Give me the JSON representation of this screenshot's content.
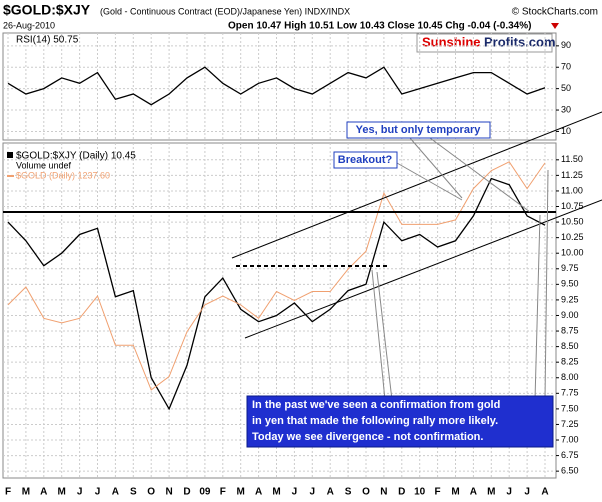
{
  "header": {
    "symbol": "$GOLD:$XJY",
    "description": "(Gold - Continuous Contract (EOD)/Japanese Yen) INDX/INDX",
    "date": "26-Aug-2010",
    "quote": "Open 10.47 High 10.51 Low 10.43 Close 10.45 Chg -0.04 (-0.34%)",
    "source": "© StockCharts.com",
    "logo_left": "Sunshine",
    "logo_right": "Profits.com"
  },
  "chart_data": [
    {
      "type": "line",
      "title": "RSI(14) 50.75",
      "categories": [
        "F",
        "M",
        "A",
        "M",
        "J",
        "J",
        "A",
        "S",
        "O",
        "N",
        "D",
        "09",
        "F",
        "M",
        "A",
        "M",
        "J",
        "J",
        "A",
        "S",
        "O",
        "N",
        "D",
        "10",
        "F",
        "M",
        "A",
        "M",
        "J",
        "J",
        "A"
      ],
      "series": [
        {
          "name": "RSI(14)",
          "color": "#000000",
          "values": [
            55,
            45,
            50,
            60,
            55,
            65,
            40,
            45,
            35,
            45,
            60,
            70,
            55,
            45,
            55,
            60,
            50,
            45,
            55,
            65,
            60,
            70,
            45,
            50,
            55,
            60,
            65,
            65,
            55,
            45,
            50.75
          ]
        }
      ],
      "ylim": [
        2,
        102
      ],
      "yticks": [
        90,
        70,
        50,
        30,
        10
      ],
      "grid": true
    },
    {
      "type": "line",
      "categories": [
        "F",
        "M",
        "A",
        "M",
        "J",
        "J",
        "A",
        "S",
        "O",
        "N",
        "D",
        "09",
        "F",
        "M",
        "A",
        "M",
        "J",
        "J",
        "A",
        "S",
        "O",
        "N",
        "D",
        "10",
        "F",
        "M",
        "A",
        "M",
        "J",
        "J",
        "A"
      ],
      "series": [
        {
          "name": "$GOLD:$XJY (Daily) 10.45",
          "color": "#000000",
          "values": [
            10.5,
            10.2,
            9.8,
            10.0,
            10.3,
            10.4,
            9.3,
            9.4,
            8.0,
            7.5,
            8.2,
            9.3,
            9.6,
            9.1,
            8.9,
            9.0,
            9.2,
            8.9,
            9.1,
            9.4,
            9.5,
            10.5,
            10.2,
            10.3,
            10.1,
            10.2,
            10.6,
            11.2,
            11.1,
            10.6,
            10.45
          ]
        },
        {
          "name": "$GOLD (Daily) 1237.60",
          "color": "#f0a070",
          "axis": "y2",
          "values": [
            920,
            960,
            890,
            880,
            890,
            940,
            830,
            830,
            730,
            760,
            860,
            920,
            940,
            920,
            890,
            950,
            930,
            950,
            950,
            1000,
            1040,
            1170,
            1100,
            1100,
            1100,
            1110,
            1180,
            1220,
            1240,
            1180,
            1237.6
          ]
        }
      ],
      "legend_extra": "Volume undef",
      "ylim": [
        6.39,
        11.77
      ],
      "yticks": [
        {
          "value": 6.5,
          "label": "6.50"
        },
        6.75,
        {
          "value": 7,
          "label": "7.00"
        },
        7.25,
        {
          "value": 7.5,
          "label": "7.50"
        },
        7.75,
        {
          "value": 8,
          "label": "8.00"
        },
        8.25,
        {
          "value": 8.5,
          "label": "8.50"
        },
        8.75,
        {
          "value": 9,
          "label": "9.00"
        },
        9.25,
        {
          "value": 9.5,
          "label": "9.50"
        },
        9.75,
        {
          "value": 10,
          "label": "10.00"
        },
        10.25,
        {
          "value": 10.5,
          "label": "10.50"
        },
        10.75,
        {
          "value": 11,
          "label": "11.00"
        },
        11.25,
        {
          "value": 11.5,
          "label": "11.50"
        }
      ],
      "y2lim": [
        533,
        1282
      ],
      "grid": true,
      "annotations": [
        "Yes, but only temporary",
        "Breakout?",
        "In the past we've seen a confirmation from gold",
        "in yen that made the following rally more likely.",
        "Today we see divergence - not confirmation."
      ]
    }
  ]
}
